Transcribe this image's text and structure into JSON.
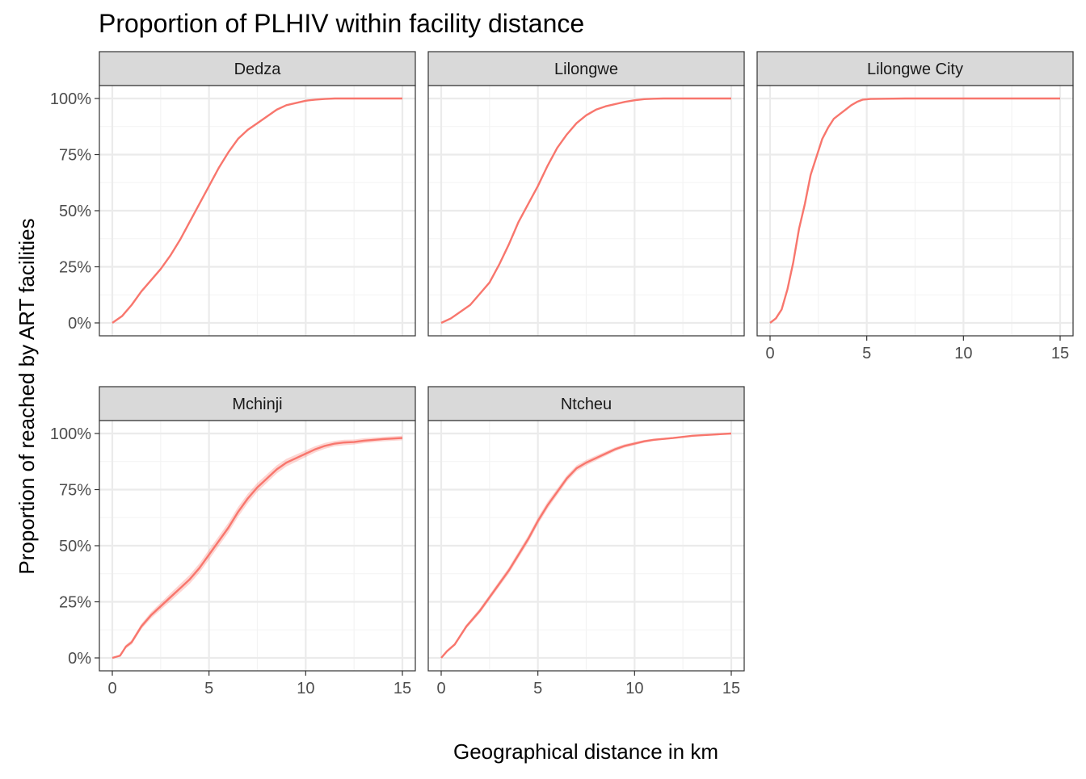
{
  "chart_data": {
    "type": "line",
    "title": "Proportion of PLHIV within facility distance",
    "xlabel": "Geographical distance in km",
    "ylabel": "Proportion of reached by ART facilities",
    "xlim": [
      0,
      15
    ],
    "ylim": [
      0,
      1
    ],
    "x_ticks": [
      "0",
      "5",
      "10",
      "15"
    ],
    "y_ticks": [
      "0%",
      "25%",
      "50%",
      "75%",
      "100%"
    ],
    "grid": true,
    "line_color": "#f8766d",
    "ribbon_color": "#f8766d",
    "facets": [
      {
        "name": "Dedza",
        "x": [
          0,
          0.5,
          1,
          1.5,
          2,
          2.5,
          3,
          3.5,
          4,
          4.5,
          5,
          5.5,
          6,
          6.5,
          7,
          7.5,
          8,
          8.5,
          9,
          9.5,
          10,
          10.5,
          11,
          11.5,
          12,
          13,
          14,
          15
        ],
        "y": [
          0.0,
          0.03,
          0.08,
          0.14,
          0.19,
          0.24,
          0.3,
          0.37,
          0.45,
          0.53,
          0.61,
          0.69,
          0.76,
          0.82,
          0.86,
          0.89,
          0.92,
          0.95,
          0.97,
          0.98,
          0.99,
          0.995,
          0.998,
          1.0,
          1.0,
          1.0,
          1.0,
          1.0
        ]
      },
      {
        "name": "Lilongwe",
        "x": [
          0,
          0.5,
          1,
          1.5,
          2,
          2.5,
          3,
          3.5,
          4,
          4.5,
          5,
          5.5,
          6,
          6.5,
          7,
          7.5,
          8,
          8.5,
          9,
          9.5,
          10,
          10.5,
          11,
          11.5,
          12,
          13,
          14,
          15
        ],
        "y": [
          0.0,
          0.02,
          0.05,
          0.08,
          0.13,
          0.18,
          0.26,
          0.35,
          0.45,
          0.53,
          0.61,
          0.7,
          0.78,
          0.84,
          0.89,
          0.925,
          0.95,
          0.965,
          0.975,
          0.985,
          0.992,
          0.997,
          0.999,
          1.0,
          1.0,
          1.0,
          1.0,
          1.0
        ]
      },
      {
        "name": "Lilongwe City",
        "x": [
          0,
          0.3,
          0.6,
          0.9,
          1.2,
          1.5,
          1.8,
          2.1,
          2.4,
          2.7,
          3.0,
          3.3,
          3.6,
          3.9,
          4.2,
          4.5,
          4.8,
          5.2,
          6,
          7,
          8,
          10,
          12,
          15
        ],
        "y": [
          0.0,
          0.02,
          0.06,
          0.15,
          0.27,
          0.42,
          0.53,
          0.66,
          0.74,
          0.82,
          0.87,
          0.91,
          0.93,
          0.95,
          0.97,
          0.985,
          0.995,
          0.998,
          0.999,
          1.0,
          1.0,
          1.0,
          1.0,
          1.0
        ]
      },
      {
        "name": "Mchinji",
        "x": [
          0,
          0.4,
          0.7,
          1,
          1.5,
          2,
          2.5,
          3,
          3.5,
          4,
          4.5,
          5,
          5.5,
          6,
          6.5,
          7,
          7.5,
          8,
          8.5,
          9,
          9.5,
          10,
          10.5,
          11,
          11.5,
          12,
          12.5,
          13,
          14,
          15
        ],
        "y": [
          0.0,
          0.01,
          0.05,
          0.07,
          0.14,
          0.19,
          0.23,
          0.27,
          0.31,
          0.35,
          0.4,
          0.46,
          0.52,
          0.58,
          0.65,
          0.71,
          0.76,
          0.8,
          0.84,
          0.87,
          0.89,
          0.91,
          0.93,
          0.945,
          0.955,
          0.96,
          0.962,
          0.968,
          0.975,
          0.98
        ],
        "ribbon_halfwidth": [
          0,
          0.005,
          0.008,
          0.01,
          0.012,
          0.014,
          0.016,
          0.018,
          0.019,
          0.02,
          0.021,
          0.022,
          0.022,
          0.022,
          0.022,
          0.021,
          0.02,
          0.019,
          0.018,
          0.017,
          0.016,
          0.015,
          0.014,
          0.013,
          0.012,
          0.012,
          0.011,
          0.011,
          0.01,
          0.01
        ]
      },
      {
        "name": "Ntcheu",
        "x": [
          0,
          0.3,
          0.7,
          1,
          1.3,
          1.6,
          2,
          2.5,
          3,
          3.5,
          4,
          4.5,
          5,
          5.5,
          6,
          6.5,
          7,
          7.5,
          8,
          8.5,
          9,
          9.5,
          10,
          10.5,
          11,
          12,
          13,
          14,
          15
        ],
        "y": [
          0.0,
          0.03,
          0.06,
          0.1,
          0.14,
          0.17,
          0.21,
          0.27,
          0.33,
          0.39,
          0.46,
          0.53,
          0.61,
          0.68,
          0.74,
          0.8,
          0.845,
          0.87,
          0.89,
          0.91,
          0.93,
          0.945,
          0.955,
          0.965,
          0.972,
          0.98,
          0.99,
          0.995,
          1.0
        ],
        "ribbon_halfwidth": [
          0,
          0.004,
          0.006,
          0.008,
          0.009,
          0.01,
          0.011,
          0.012,
          0.013,
          0.014,
          0.015,
          0.016,
          0.016,
          0.016,
          0.015,
          0.014,
          0.013,
          0.012,
          0.011,
          0.01,
          0.009,
          0.008,
          0.007,
          0.006,
          0.005,
          0.004,
          0.003,
          0.002,
          0.002
        ]
      }
    ]
  }
}
